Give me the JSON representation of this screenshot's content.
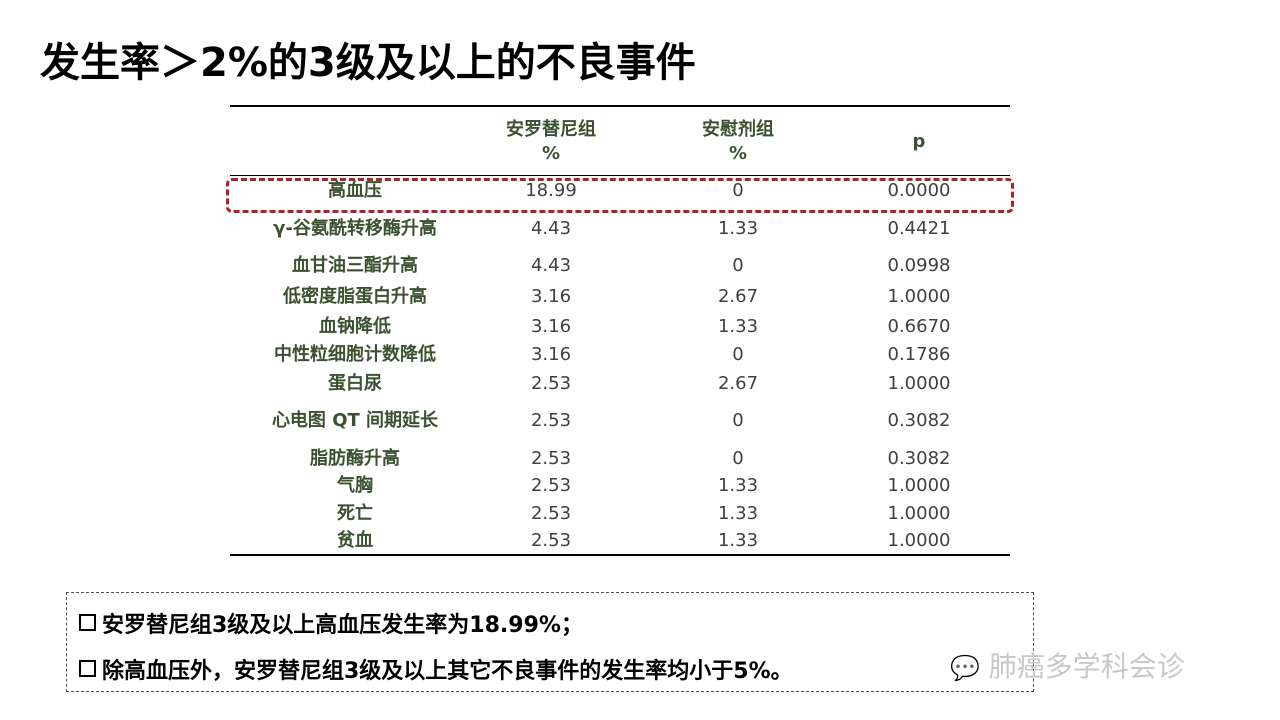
{
  "title": "发生率＞2%的3级及以上的不良事件",
  "table": {
    "headers": [
      [
        "安罗替尼组",
        "%"
      ],
      [
        "安慰剂组",
        "%"
      ],
      [
        "p"
      ]
    ],
    "rows": [
      {
        "label": "高血压",
        "a": "18.99",
        "b": "0",
        "p": "0.0000",
        "highlighted": true
      },
      {
        "label": "γ-谷氨酰转移酶升高",
        "a": "4.43",
        "b": "1.33",
        "p": "0.4421"
      },
      {
        "label": "血甘油三酯升高",
        "a": "4.43",
        "b": "0",
        "p": "0.0998"
      },
      {
        "label": "低密度脂蛋白升高",
        "a": "3.16",
        "b": "2.67",
        "p": "1.0000"
      },
      {
        "label": "血钠降低",
        "a": "3.16",
        "b": "1.33",
        "p": "0.6670"
      },
      {
        "label": "中性粒细胞计数降低",
        "a": "3.16",
        "b": "0",
        "p": "0.1786"
      },
      {
        "label": "蛋白尿",
        "a": "2.53",
        "b": "2.67",
        "p": "1.0000"
      },
      {
        "label": "心电图 QT 间期延长",
        "a": "2.53",
        "b": "0",
        "p": "0.3082"
      },
      {
        "label": "脂肪酶升高",
        "a": "2.53",
        "b": "0",
        "p": "0.3082"
      },
      {
        "label": "气胸",
        "a": "2.53",
        "b": "1.33",
        "p": "1.0000"
      },
      {
        "label": "死亡",
        "a": "2.53",
        "b": "1.33",
        "p": "1.0000"
      },
      {
        "label": "贫血",
        "a": "2.53",
        "b": "1.33",
        "p": "1.0000"
      }
    ]
  },
  "notes": [
    "安罗替尼组3级及以上高血压发生率为18.99%；",
    "除高血压外，安罗替尼组3级及以上其它不良事件的发生率均小于5%。"
  ],
  "watermark": "肺癌多学科会诊",
  "colors": {
    "label": "#3b5230",
    "highlight": "#b52025"
  }
}
